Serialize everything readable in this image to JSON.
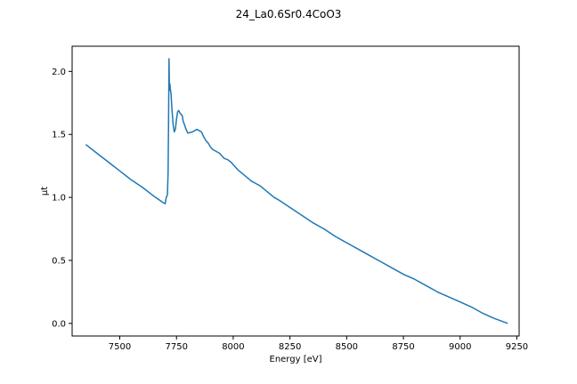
{
  "chart_data": {
    "type": "line",
    "title": "24_La0.6Sr0.4CoO3",
    "xlabel": "Energy [eV]",
    "ylabel": "μt",
    "xlim": [
      7290,
      9260
    ],
    "ylim": [
      -0.1,
      2.2
    ],
    "xticks": [
      7500,
      7750,
      8000,
      8250,
      8500,
      8750,
      9000,
      9250
    ],
    "yticks": [
      0.0,
      0.5,
      1.0,
      1.5,
      2.0
    ],
    "xtick_labels": [
      "7500",
      "7750",
      "8000",
      "8250",
      "8500",
      "8750",
      "9000",
      "9250"
    ],
    "ytick_labels": [
      "0.0",
      "0.5",
      "1.0",
      "1.5",
      "2.0"
    ],
    "grid": false,
    "series": [
      {
        "color": "#1f77b4",
        "x": [
          7350,
          7400,
          7450,
          7500,
          7550,
          7600,
          7650,
          7690,
          7700,
          7705,
          7710,
          7713,
          7715,
          7717,
          7719,
          7721,
          7723,
          7726,
          7730,
          7735,
          7740,
          7745,
          7750,
          7755,
          7760,
          7765,
          7770,
          7775,
          7780,
          7785,
          7790,
          7800,
          7820,
          7840,
          7860,
          7870,
          7880,
          7890,
          7900,
          7910,
          7920,
          7940,
          7960,
          7975,
          7990,
          8000,
          8020,
          8040,
          8060,
          8080,
          8100,
          8120,
          8140,
          8160,
          8180,
          8200,
          8225,
          8250,
          8300,
          8350,
          8400,
          8450,
          8500,
          8550,
          8600,
          8650,
          8700,
          8750,
          8800,
          8850,
          8900,
          8950,
          9000,
          9050,
          9100,
          9150,
          9210
        ],
        "y": [
          1.42,
          1.35,
          1.28,
          1.21,
          1.14,
          1.08,
          1.01,
          0.96,
          0.95,
          1.0,
          1.02,
          1.2,
          1.6,
          2.1,
          1.85,
          1.9,
          1.86,
          1.82,
          1.7,
          1.58,
          1.52,
          1.54,
          1.62,
          1.68,
          1.69,
          1.67,
          1.66,
          1.65,
          1.6,
          1.58,
          1.55,
          1.51,
          1.52,
          1.54,
          1.52,
          1.48,
          1.45,
          1.43,
          1.4,
          1.38,
          1.37,
          1.35,
          1.31,
          1.3,
          1.28,
          1.26,
          1.22,
          1.19,
          1.16,
          1.13,
          1.11,
          1.09,
          1.06,
          1.03,
          1.0,
          0.98,
          0.95,
          0.92,
          0.86,
          0.8,
          0.75,
          0.69,
          0.64,
          0.59,
          0.54,
          0.49,
          0.44,
          0.39,
          0.35,
          0.3,
          0.25,
          0.21,
          0.17,
          0.13,
          0.08,
          0.04,
          0.0
        ]
      }
    ]
  }
}
